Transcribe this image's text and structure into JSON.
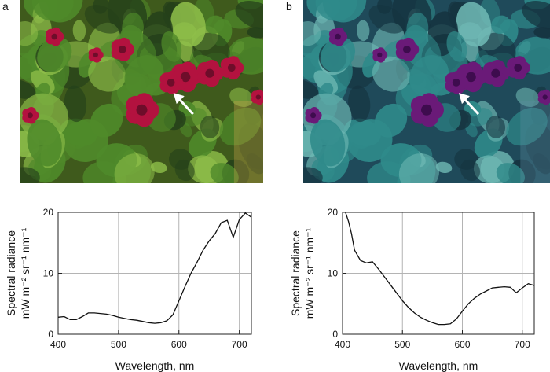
{
  "panels": [
    {
      "letter": "a",
      "photo": {
        "subject": "pink geranium flowers with green leaves",
        "tint": "natural",
        "palette": {
          "bg": "#3f5a1c",
          "leaf": "#4f8a2a",
          "leaf_light": "#8fbf4a",
          "leaf_dark": "#24401a",
          "flower": "#b3123f",
          "flower_dark": "#6e0d2a",
          "arrow": "#ffffff",
          "warm": "#c9a24a"
        }
      }
    },
    {
      "letter": "b",
      "photo": {
        "subject": "same geranium scene with blue-shifted colours",
        "tint": "blue-shifted",
        "palette": {
          "bg": "#1f4a5a",
          "leaf": "#2f8a8a",
          "leaf_light": "#6fb9b4",
          "leaf_dark": "#15333f",
          "flower": "#6a1a78",
          "flower_dark": "#3e0c4e",
          "arrow": "#ffffff",
          "warm": "#5b8ba0"
        }
      }
    }
  ],
  "chart_data": [
    {
      "type": "line",
      "panel": "a",
      "xlabel": "Wavelength, nm",
      "ylabel_line1": "Spectral radiance",
      "ylabel_line2": "mW m⁻² sr⁻¹ nm⁻¹",
      "xlim": [
        400,
        720
      ],
      "ylim": [
        0,
        20
      ],
      "xticks": [
        400,
        500,
        600,
        700
      ],
      "yticks": [
        0,
        10,
        20
      ],
      "grid": true,
      "x": [
        400,
        410,
        420,
        430,
        440,
        450,
        460,
        470,
        480,
        490,
        500,
        510,
        520,
        530,
        540,
        550,
        560,
        570,
        580,
        590,
        600,
        610,
        620,
        630,
        640,
        650,
        660,
        670,
        680,
        690,
        700,
        710,
        720
      ],
      "y": [
        2.8,
        2.9,
        2.4,
        2.4,
        2.9,
        3.5,
        3.5,
        3.4,
        3.3,
        3.1,
        2.8,
        2.6,
        2.4,
        2.3,
        2.1,
        1.9,
        1.8,
        1.9,
        2.2,
        3.2,
        5.5,
        7.8,
        10.0,
        11.8,
        13.8,
        15.3,
        16.5,
        18.3,
        18.7,
        15.9,
        18.8,
        19.9,
        19.2
      ]
    },
    {
      "type": "line",
      "panel": "b",
      "xlabel": "Wavelength, nm",
      "ylabel_line1": "Spectral radiance",
      "ylabel_line2": "mW m⁻² sr⁻¹ nm⁻¹",
      "xlim": [
        400,
        720
      ],
      "ylim": [
        0,
        20
      ],
      "xticks": [
        400,
        500,
        600,
        700
      ],
      "yticks": [
        0,
        10,
        20
      ],
      "grid": true,
      "x": [
        405,
        410,
        415,
        420,
        430,
        440,
        450,
        460,
        470,
        480,
        490,
        500,
        510,
        520,
        530,
        540,
        550,
        560,
        570,
        580,
        590,
        600,
        610,
        620,
        630,
        640,
        650,
        660,
        670,
        680,
        690,
        700,
        710,
        720
      ],
      "y": [
        20.0,
        18.5,
        16.5,
        13.8,
        12.1,
        11.7,
        11.9,
        10.7,
        9.4,
        8.1,
        6.8,
        5.5,
        4.4,
        3.5,
        2.8,
        2.3,
        1.9,
        1.6,
        1.6,
        1.7,
        2.5,
        3.8,
        5.0,
        5.9,
        6.6,
        7.1,
        7.6,
        7.7,
        7.8,
        7.7,
        6.8,
        7.6,
        8.3,
        8.0
      ]
    }
  ]
}
